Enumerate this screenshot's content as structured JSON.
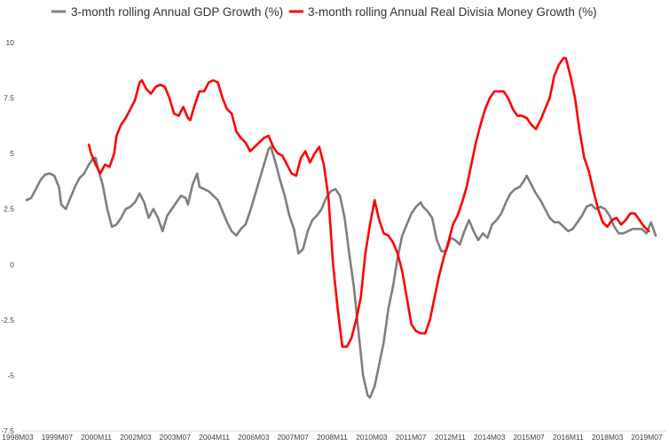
{
  "chart_data": {
    "type": "line",
    "title": "",
    "xlabel": "",
    "ylabel": "",
    "ylim": [
      -7.5,
      10
    ],
    "yticks": [
      10,
      7.5,
      5,
      2.5,
      0,
      -2.5,
      -5,
      -7.5
    ],
    "ytick_labels": [
      "10",
      "7.5",
      "5",
      "2.5",
      "0",
      "-2.5",
      "-5",
      "-7.5"
    ],
    "xticks": [
      "1998M03",
      "1999M07",
      "2000M11",
      "2002M03",
      "2003M07",
      "2004M11",
      "2006M03",
      "2007M07",
      "2008M11",
      "2010M03",
      "2011M07",
      "2012M11",
      "2014M03",
      "2015M07",
      "2016M11",
      "2018M03",
      "2019M07"
    ],
    "grid": false,
    "legend": "top",
    "series": [
      {
        "name": "3-month rolling Annual GDP Growth (%)",
        "color": "#7f7f7f",
        "points": [
          [
            "1998M03",
            2.9
          ],
          [
            "1998M05",
            3.0
          ],
          [
            "1998M07",
            3.4
          ],
          [
            "1998M09",
            3.8
          ],
          [
            "1998M11",
            4.05
          ],
          [
            "1999M01",
            4.1
          ],
          [
            "1999M03",
            4.0
          ],
          [
            "1999M05",
            3.5
          ],
          [
            "1999M06",
            2.7
          ],
          [
            "1999M08",
            2.5
          ],
          [
            "1999M10",
            3.0
          ],
          [
            "1999M12",
            3.5
          ],
          [
            "2000M02",
            3.9
          ],
          [
            "2000M04",
            4.1
          ],
          [
            "2000M06",
            4.5
          ],
          [
            "2000M08",
            4.8
          ],
          [
            "2000M09",
            4.8
          ],
          [
            "2000M10",
            4.3
          ],
          [
            "2000M12",
            3.6
          ],
          [
            "2001M02",
            2.5
          ],
          [
            "2001M04",
            1.7
          ],
          [
            "2001M06",
            1.8
          ],
          [
            "2001M08",
            2.1
          ],
          [
            "2001M10",
            2.5
          ],
          [
            "2001M12",
            2.6
          ],
          [
            "2002M02",
            2.8
          ],
          [
            "2002M04",
            3.2
          ],
          [
            "2002M06",
            2.8
          ],
          [
            "2002M08",
            2.1
          ],
          [
            "2002M10",
            2.5
          ],
          [
            "2002M12",
            2.1
          ],
          [
            "2003M02",
            1.5
          ],
          [
            "2003M04",
            2.2
          ],
          [
            "2003M06",
            2.5
          ],
          [
            "2003M08",
            2.8
          ],
          [
            "2003M10",
            3.1
          ],
          [
            "2003M12",
            3.0
          ],
          [
            "2004M01",
            2.7
          ],
          [
            "2004M03",
            3.6
          ],
          [
            "2004M05",
            4.1
          ],
          [
            "2004M06",
            3.5
          ],
          [
            "2004M08",
            3.4
          ],
          [
            "2004M10",
            3.3
          ],
          [
            "2004M12",
            3.1
          ],
          [
            "2005M02",
            2.9
          ],
          [
            "2005M04",
            2.4
          ],
          [
            "2005M06",
            1.9
          ],
          [
            "2005M08",
            1.5
          ],
          [
            "2005M10",
            1.3
          ],
          [
            "2005M12",
            1.6
          ],
          [
            "2006M02",
            1.8
          ],
          [
            "2006M04",
            2.4
          ],
          [
            "2006M06",
            3.1
          ],
          [
            "2006M08",
            3.8
          ],
          [
            "2006M10",
            4.5
          ],
          [
            "2006M12",
            5.2
          ],
          [
            "2007M01",
            5.3
          ],
          [
            "2007M03",
            4.6
          ],
          [
            "2007M05",
            3.8
          ],
          [
            "2007M07",
            3.1
          ],
          [
            "2007M09",
            2.2
          ],
          [
            "2007M11",
            1.6
          ],
          [
            "2008M01",
            0.5
          ],
          [
            "2008M03",
            0.7
          ],
          [
            "2008M05",
            1.5
          ],
          [
            "2008M07",
            2.0
          ],
          [
            "2008M09",
            2.2
          ],
          [
            "2008M11",
            2.5
          ],
          [
            "2009M01",
            3.0
          ],
          [
            "2009M03",
            3.3
          ],
          [
            "2009M05",
            3.4
          ],
          [
            "2009M07",
            3.1
          ],
          [
            "2009M09",
            2.1
          ],
          [
            "2009M11",
            0.5
          ],
          [
            "2010M01",
            -1.0
          ],
          [
            "2010M03",
            -3.0
          ],
          [
            "2010M05",
            -5.0
          ],
          [
            "2010M07",
            -5.9
          ],
          [
            "2010M08",
            -6.0
          ],
          [
            "2010M10",
            -5.5
          ],
          [
            "2010M12",
            -4.5
          ],
          [
            "2011M02",
            -3.5
          ],
          [
            "2011M04",
            -2.0
          ],
          [
            "2011M06",
            -1.0
          ],
          [
            "2011M08",
            0.3
          ],
          [
            "2011M10",
            1.3
          ],
          [
            "2011M12",
            1.8
          ],
          [
            "2012M02",
            2.3
          ],
          [
            "2012M04",
            2.6
          ],
          [
            "2012M06",
            2.8
          ],
          [
            "2012M07",
            2.6
          ],
          [
            "2012M09",
            2.4
          ],
          [
            "2012M11",
            2.1
          ],
          [
            "2013M01",
            1.1
          ],
          [
            "2013M03",
            0.6
          ],
          [
            "2013M05",
            0.6
          ],
          [
            "2013M07",
            1.2
          ],
          [
            "2013M09",
            1.1
          ],
          [
            "2013M11",
            0.9
          ],
          [
            "2014M01",
            1.5
          ],
          [
            "2014M03",
            2.0
          ],
          [
            "2014M05",
            1.5
          ],
          [
            "2014M07",
            1.1
          ],
          [
            "2014M09",
            1.4
          ],
          [
            "2014M11",
            1.2
          ],
          [
            "2015M01",
            1.8
          ],
          [
            "2015M03",
            2.0
          ],
          [
            "2015M05",
            2.3
          ],
          [
            "2015M07",
            2.8
          ],
          [
            "2015M09",
            3.2
          ],
          [
            "2015M11",
            3.4
          ],
          [
            "2016M01",
            3.5
          ],
          [
            "2016M03",
            3.8
          ],
          [
            "2016M04",
            4.0
          ],
          [
            "2016M06",
            3.6
          ],
          [
            "2016M08",
            3.2
          ],
          [
            "2016M10",
            2.9
          ],
          [
            "2016M12",
            2.5
          ],
          [
            "2017M02",
            2.1
          ],
          [
            "2017M04",
            1.9
          ],
          [
            "2017M06",
            1.9
          ],
          [
            "2017M08",
            1.7
          ],
          [
            "2017M10",
            1.5
          ],
          [
            "2017M12",
            1.6
          ],
          [
            "2018M02",
            1.9
          ],
          [
            "2018M04",
            2.2
          ],
          [
            "2018M06",
            2.6
          ],
          [
            "2018M08",
            2.7
          ],
          [
            "2018M10",
            2.5
          ],
          [
            "2018M12",
            2.6
          ],
          [
            "2019M02",
            2.5
          ],
          [
            "2019M04",
            2.2
          ],
          [
            "2019M06",
            1.7
          ],
          [
            "2019M08",
            1.4
          ],
          [
            "2019M10",
            1.4
          ],
          [
            "2019M12",
            1.5
          ],
          [
            "2020M02",
            1.6
          ],
          [
            "2020M04",
            1.6
          ],
          [
            "2020M06",
            1.6
          ],
          [
            "2020M08",
            1.4
          ],
          [
            "2020M10",
            1.9
          ],
          [
            "2020M12",
            1.3
          ]
        ]
      },
      {
        "name": "3-month rolling Annual Real Divisia Money Growth (%)",
        "color": "#ff0000",
        "points": [
          [
            "2000M06",
            5.4
          ],
          [
            "2000M07",
            5.0
          ],
          [
            "2000M09",
            4.5
          ],
          [
            "2000M11",
            4.1
          ],
          [
            "2001M01",
            4.5
          ],
          [
            "2001M03",
            4.4
          ],
          [
            "2001M05",
            5.0
          ],
          [
            "2001M06",
            5.8
          ],
          [
            "2001M08",
            6.3
          ],
          [
            "2001M10",
            6.6
          ],
          [
            "2001M12",
            7.0
          ],
          [
            "2002M02",
            7.4
          ],
          [
            "2002M04",
            8.2
          ],
          [
            "2002M05",
            8.3
          ],
          [
            "2002M07",
            7.9
          ],
          [
            "2002M09",
            7.7
          ],
          [
            "2002M11",
            8.0
          ],
          [
            "2003M01",
            8.1
          ],
          [
            "2003M03",
            8.0
          ],
          [
            "2003M05",
            7.5
          ],
          [
            "2003M07",
            6.8
          ],
          [
            "2003M09",
            6.7
          ],
          [
            "2003M11",
            7.1
          ],
          [
            "2004M01",
            6.6
          ],
          [
            "2004M02",
            6.5
          ],
          [
            "2004M04",
            7.2
          ],
          [
            "2004M06",
            7.8
          ],
          [
            "2004M08",
            7.8
          ],
          [
            "2004M10",
            8.2
          ],
          [
            "2004M12",
            8.3
          ],
          [
            "2005M02",
            8.2
          ],
          [
            "2005M04",
            7.5
          ],
          [
            "2005M06",
            7.0
          ],
          [
            "2005M08",
            6.8
          ],
          [
            "2005M10",
            6.0
          ],
          [
            "2005M12",
            5.7
          ],
          [
            "2006M02",
            5.5
          ],
          [
            "2006M04",
            5.1
          ],
          [
            "2006M06",
            5.3
          ],
          [
            "2006M08",
            5.5
          ],
          [
            "2006M10",
            5.7
          ],
          [
            "2006M12",
            5.8
          ],
          [
            "2007M02",
            5.3
          ],
          [
            "2007M04",
            5.0
          ],
          [
            "2007M06",
            4.9
          ],
          [
            "2007M08",
            4.5
          ],
          [
            "2007M10",
            4.1
          ],
          [
            "2007M12",
            4.0
          ],
          [
            "2008M02",
            4.8
          ],
          [
            "2008M04",
            5.1
          ],
          [
            "2008M06",
            4.6
          ],
          [
            "2008M08",
            5.0
          ],
          [
            "2008M10",
            5.3
          ],
          [
            "2008M12",
            4.5
          ],
          [
            "2009M02",
            3.0
          ],
          [
            "2009M04",
            0.0
          ],
          [
            "2009M06",
            -2.0
          ],
          [
            "2009M08",
            -3.7
          ],
          [
            "2009M10",
            -3.7
          ],
          [
            "2009M12",
            -3.3
          ],
          [
            "2010M02",
            -2.5
          ],
          [
            "2010M04",
            -1.5
          ],
          [
            "2010M06",
            0.5
          ],
          [
            "2010M08",
            1.8
          ],
          [
            "2010M10",
            2.9
          ],
          [
            "2010M12",
            2.0
          ],
          [
            "2011M02",
            1.4
          ],
          [
            "2011M04",
            1.3
          ],
          [
            "2011M06",
            1.0
          ],
          [
            "2011M08",
            0.5
          ],
          [
            "2011M10",
            -0.3
          ],
          [
            "2011M12",
            -1.5
          ],
          [
            "2012M02",
            -2.7
          ],
          [
            "2012M04",
            -3.0
          ],
          [
            "2012M06",
            -3.1
          ],
          [
            "2012M08",
            -3.1
          ],
          [
            "2012M10",
            -2.5
          ],
          [
            "2012M12",
            -1.5
          ],
          [
            "2013M02",
            -0.5
          ],
          [
            "2013M04",
            0.3
          ],
          [
            "2013M06",
            1.0
          ],
          [
            "2013M08",
            1.8
          ],
          [
            "2013M10",
            2.2
          ],
          [
            "2013M12",
            2.8
          ],
          [
            "2014M02",
            3.5
          ],
          [
            "2014M04",
            4.5
          ],
          [
            "2014M06",
            5.5
          ],
          [
            "2014M08",
            6.3
          ],
          [
            "2014M10",
            7.0
          ],
          [
            "2014M12",
            7.5
          ],
          [
            "2015M02",
            7.8
          ],
          [
            "2015M04",
            7.8
          ],
          [
            "2015M06",
            7.8
          ],
          [
            "2015M08",
            7.5
          ],
          [
            "2015M10",
            7.0
          ],
          [
            "2015M12",
            6.7
          ],
          [
            "2016M02",
            6.7
          ],
          [
            "2016M04",
            6.6
          ],
          [
            "2016M06",
            6.3
          ],
          [
            "2016M08",
            6.1
          ],
          [
            "2016M10",
            6.5
          ],
          [
            "2016M12",
            7.0
          ],
          [
            "2017M02",
            7.5
          ],
          [
            "2017M04",
            8.5
          ],
          [
            "2017M06",
            9.0
          ],
          [
            "2017M08",
            9.3
          ],
          [
            "2017M09",
            9.3
          ],
          [
            "2017M11",
            8.5
          ],
          [
            "2018M01",
            7.5
          ],
          [
            "2018M03",
            6.0
          ],
          [
            "2018M05",
            4.8
          ],
          [
            "2018M07",
            4.2
          ],
          [
            "2018M09",
            3.3
          ],
          [
            "2018M11",
            2.5
          ],
          [
            "2019M01",
            1.9
          ],
          [
            "2019M03",
            1.7
          ],
          [
            "2019M05",
            2.0
          ],
          [
            "2019M07",
            2.1
          ],
          [
            "2019M09",
            1.8
          ],
          [
            "2019M11",
            2.0
          ],
          [
            "2020M01",
            2.3
          ],
          [
            "2020M03",
            2.3
          ],
          [
            "2020M05",
            2.0
          ],
          [
            "2020M07",
            1.7
          ],
          [
            "2020M09",
            1.5
          ]
        ]
      }
    ]
  }
}
